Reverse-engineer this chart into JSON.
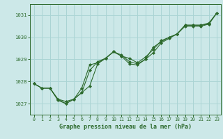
{
  "xlabel": "Graphe pression niveau de la mer (hPa)",
  "x": [
    0,
    1,
    2,
    3,
    4,
    5,
    6,
    7,
    8,
    9,
    10,
    11,
    12,
    13,
    14,
    15,
    16,
    17,
    18,
    19,
    20,
    21,
    22,
    23
  ],
  "line1": [
    1027.9,
    1027.7,
    1027.7,
    1027.2,
    1027.1,
    1027.2,
    1027.5,
    1027.8,
    1028.8,
    1029.05,
    1029.35,
    1029.15,
    1029.05,
    1028.85,
    1029.1,
    1029.45,
    1029.85,
    1030.0,
    1030.15,
    1030.55,
    1030.55,
    1030.55,
    1030.65,
    1031.1
  ],
  "line2": [
    1027.9,
    1027.7,
    1027.7,
    1027.2,
    1027.0,
    1027.2,
    1027.5,
    1028.5,
    1028.9,
    1029.05,
    1029.35,
    1029.15,
    1028.8,
    1028.75,
    1029.0,
    1029.3,
    1029.75,
    1029.95,
    1030.15,
    1030.5,
    1030.5,
    1030.5,
    1030.6,
    1031.1
  ],
  "line3": [
    1027.9,
    1027.7,
    1027.7,
    1027.15,
    1027.0,
    1027.2,
    1027.7,
    1028.75,
    1028.85,
    1029.05,
    1029.35,
    1029.2,
    1028.9,
    1028.8,
    1029.0,
    1029.55,
    1029.8,
    1030.0,
    1030.15,
    1030.55,
    1030.55,
    1030.55,
    1030.6,
    1031.1
  ],
  "line_color": "#2d6a2d",
  "bg_color": "#cce8e8",
  "grid_color": "#aad4d4",
  "text_color": "#2d6a2d",
  "ylim": [
    1026.5,
    1031.5
  ],
  "yticks": [
    1027,
    1028,
    1029,
    1030,
    1031
  ],
  "xticks": [
    0,
    1,
    2,
    3,
    4,
    5,
    6,
    7,
    8,
    9,
    10,
    11,
    12,
    13,
    14,
    15,
    16,
    17,
    18,
    19,
    20,
    21,
    22,
    23
  ]
}
